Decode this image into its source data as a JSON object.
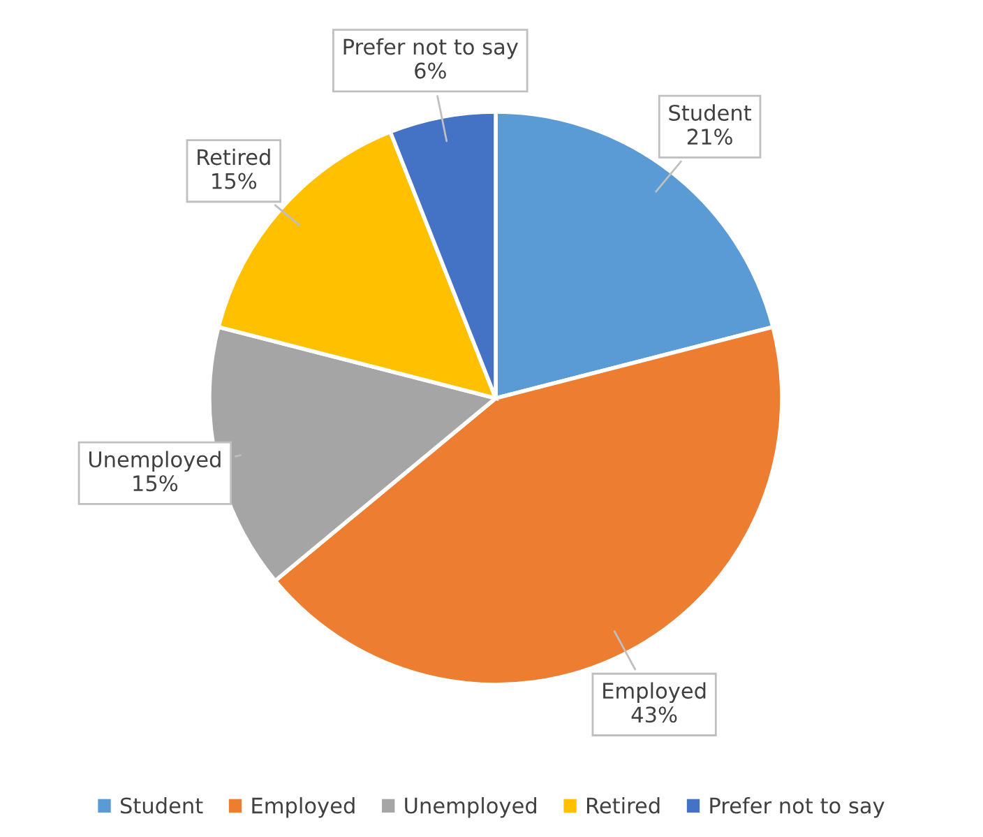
{
  "chart_data": {
    "type": "pie",
    "categories": [
      "Student",
      "Employed",
      "Unemployed",
      "Retired",
      "Prefer not to say"
    ],
    "values": [
      21,
      43,
      15,
      15,
      6
    ],
    "value_labels": [
      "21%",
      "43%",
      "15%",
      "15%",
      "6%"
    ],
    "colors": [
      "#5b9bd5",
      "#ed7d31",
      "#a5a5a5",
      "#ffc000",
      "#4472c4"
    ],
    "legend": "bottom"
  }
}
